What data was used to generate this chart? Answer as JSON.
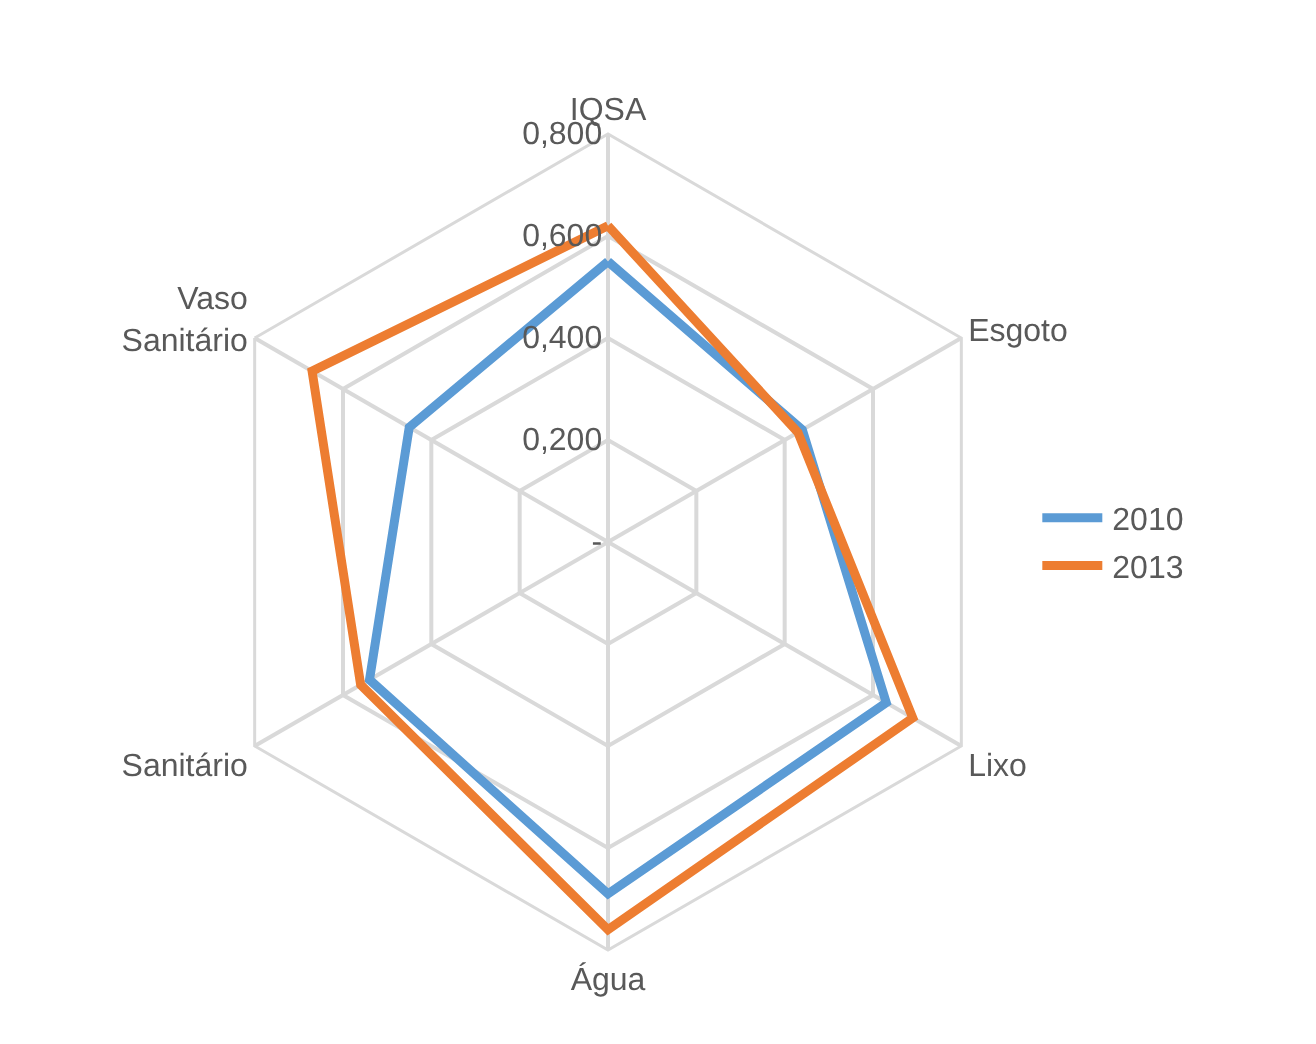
{
  "chart_data": {
    "type": "radar",
    "categories": [
      "IQSA",
      "Esgoto",
      "Lixo",
      "Água",
      "Sanitário",
      "Vaso Sanitário"
    ],
    "series": [
      {
        "name": "2010",
        "color": "#5b9bd5",
        "values": [
          0.55,
          0.44,
          0.63,
          0.69,
          0.54,
          0.45
        ]
      },
      {
        "name": "2013",
        "color": "#ed7d31",
        "values": [
          0.62,
          0.43,
          0.69,
          0.76,
          0.56,
          0.67
        ]
      }
    ],
    "ylim": [
      0,
      0.8
    ],
    "yticks": [
      {
        "value": 0,
        "label": "-"
      },
      {
        "value": 0.2,
        "label": "0,200"
      },
      {
        "value": 0.4,
        "label": "0,400"
      },
      {
        "value": 0.6,
        "label": "0,600"
      },
      {
        "value": 0.8,
        "label": "0,800"
      }
    ],
    "grid": true,
    "legend": "right",
    "marker": "none"
  }
}
